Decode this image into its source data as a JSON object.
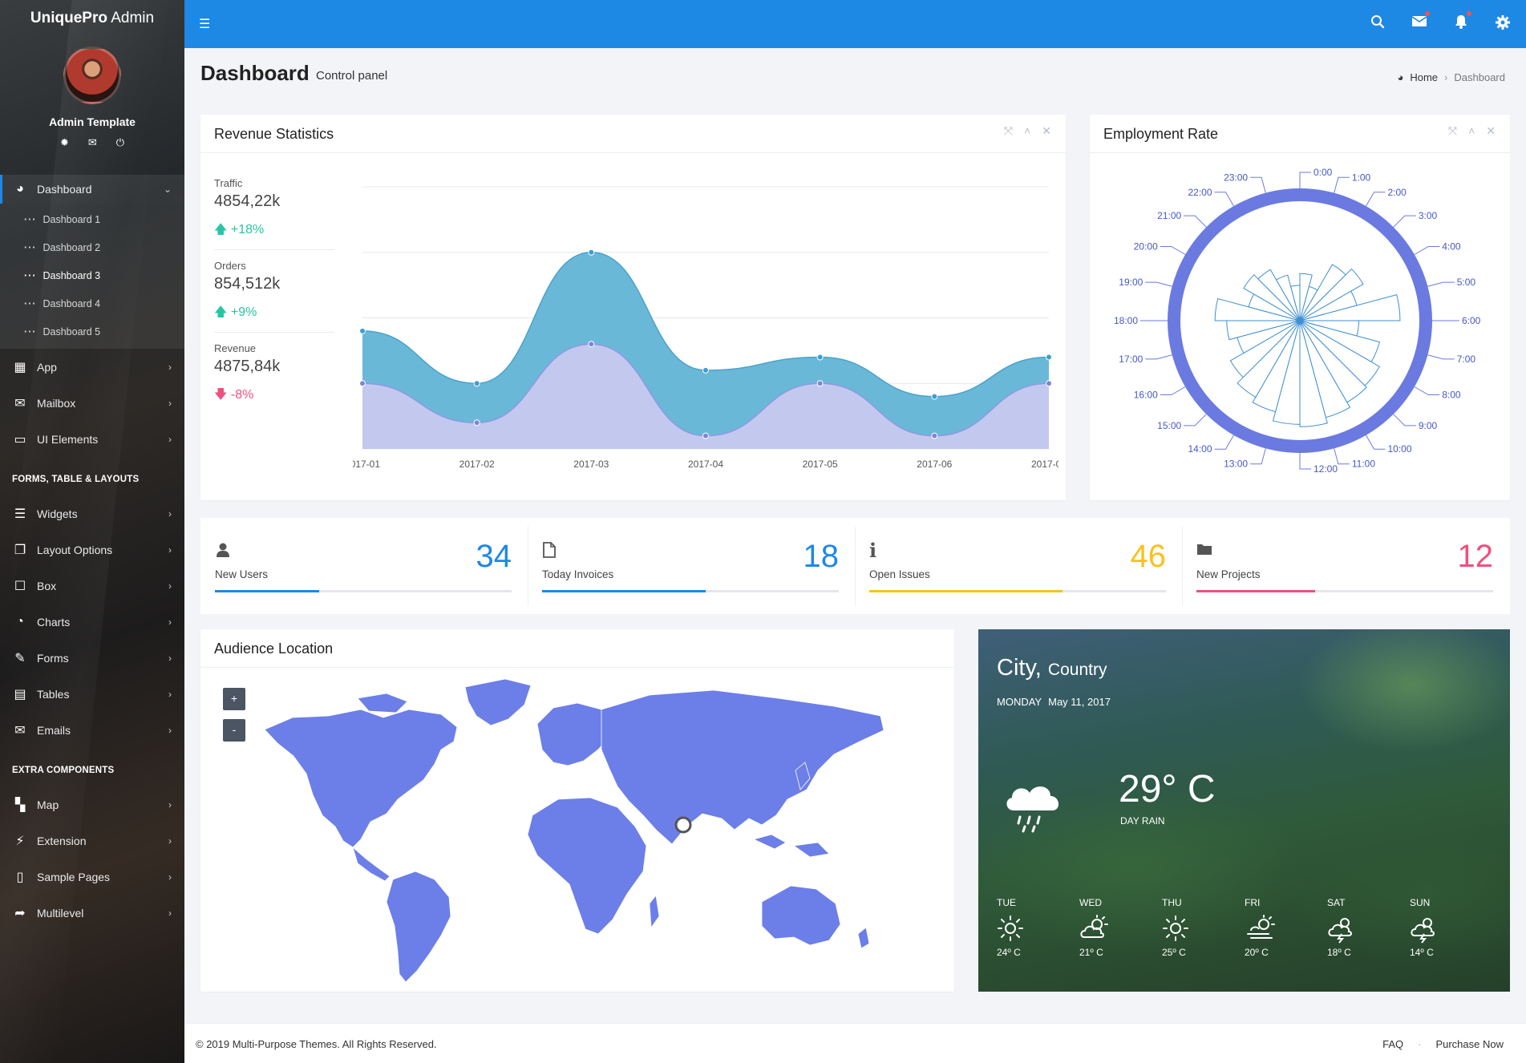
{
  "brand": {
    "bold": "UniquePro",
    "rest": " Admin"
  },
  "user": {
    "name": "Admin Template"
  },
  "sidebar": {
    "dashboard": {
      "label": "Dashboard",
      "subitems": [
        "Dashboard 1",
        "Dashboard 2",
        "Dashboard 3",
        "Dashboard 4",
        "Dashboard 5"
      ]
    },
    "items_a": [
      {
        "label": "App",
        "icon": "grid-icon"
      },
      {
        "label": "Mailbox",
        "icon": "envelope-icon"
      },
      {
        "label": "UI Elements",
        "icon": "laptop-icon"
      }
    ],
    "header_forms": "FORMS, TABLE & LAYOUTS",
    "items_b": [
      {
        "label": "Widgets",
        "icon": "bars-icon"
      },
      {
        "label": "Layout Options",
        "icon": "copy-icon"
      },
      {
        "label": "Box",
        "icon": "square-icon"
      },
      {
        "label": "Charts",
        "icon": "pie-chart-icon"
      },
      {
        "label": "Forms",
        "icon": "edit-icon"
      },
      {
        "label": "Tables",
        "icon": "table-icon"
      },
      {
        "label": "Emails",
        "icon": "envelope-open-icon"
      }
    ],
    "header_extra": "EXTRA COMPONENTS",
    "items_c": [
      {
        "label": "Map",
        "icon": "map-icon"
      },
      {
        "label": "Extension",
        "icon": "plug-icon"
      },
      {
        "label": "Sample Pages",
        "icon": "file-icon"
      },
      {
        "label": "Multilevel",
        "icon": "share-icon"
      }
    ]
  },
  "page": {
    "title": "Dashboard",
    "subtitle": "Control panel"
  },
  "breadcrumb": {
    "home": "Home",
    "current": "Dashboard"
  },
  "revenue": {
    "title": "Revenue Statistics",
    "stats": [
      {
        "label": "Traffic",
        "value": "4854,22k",
        "change": "+18%",
        "direction": "up"
      },
      {
        "label": "Orders",
        "value": "854,512k",
        "change": "+9%",
        "direction": "up"
      },
      {
        "label": "Revenue",
        "value": "4875,84k",
        "change": "-8%",
        "direction": "down"
      }
    ]
  },
  "chart_data": {
    "type": "area",
    "x": [
      "2017-01",
      "2017-02",
      "2017-03",
      "2017-04",
      "2017-05",
      "2017-06",
      "2017-07"
    ],
    "series": [
      {
        "values": [
          9,
          5,
          15,
          6,
          7,
          4,
          7
        ],
        "color": "#6ab8d8"
      },
      {
        "values": [
          5,
          2,
          8,
          1,
          5,
          1,
          5
        ],
        "color": "#c3c8ef"
      }
    ],
    "ylim": [
      0,
      20
    ],
    "yticks": [
      0,
      5,
      10,
      15,
      20
    ],
    "grid": true
  },
  "employment": {
    "title": "Employment Rate",
    "hours": [
      "0:00",
      "1:00",
      "2:00",
      "3:00",
      "4:00",
      "5:00",
      "6:00",
      "7:00",
      "8:00",
      "9:00",
      "10:00",
      "11:00",
      "12:00",
      "13:00",
      "14:00",
      "15:00",
      "16:00",
      "17:00",
      "18:00",
      "19:00",
      "20:00",
      "21:00",
      "22:00",
      "23:00"
    ],
    "values": [
      0.4,
      0.3,
      0.55,
      0.62,
      0.5,
      0.85,
      0.5,
      0.7,
      0.78,
      0.8,
      0.85,
      0.9,
      0.88,
      0.8,
      0.75,
      0.68,
      0.55,
      0.62,
      0.72,
      0.45,
      0.55,
      0.5,
      0.4,
      0.3
    ],
    "color": "#6a7ae0"
  },
  "kpis": [
    {
      "label": "New Users",
      "value": "34",
      "icon": "user-icon",
      "color": "#1e88e5",
      "progress": 0.35
    },
    {
      "label": "Today Invoices",
      "value": "18",
      "icon": "file-icon",
      "color": "#1e88e5",
      "progress": 0.55
    },
    {
      "label": "Open Issues",
      "value": "46",
      "icon": "info-icon",
      "color": "#f9c21b",
      "progress": 0.65
    },
    {
      "label": "New Projects",
      "value": "12",
      "icon": "folder-icon",
      "color": "#ef4f7e",
      "progress": 0.4
    }
  ],
  "audience": {
    "title": "Audience Location",
    "zoom_in": "+",
    "zoom_out": "-",
    "map_color": "#6c7ee8"
  },
  "weather": {
    "city": "City,",
    "country": "Country",
    "day": "MONDAY",
    "date": "May 11, 2017",
    "temp": "29° C",
    "condition": "DAY RAIN",
    "forecast": [
      {
        "day": "TUE",
        "temp": "24º C",
        "icon": "sun-icon"
      },
      {
        "day": "WED",
        "temp": "21º C",
        "icon": "cloud-sun-icon"
      },
      {
        "day": "THU",
        "temp": "25º C",
        "icon": "sun-icon"
      },
      {
        "day": "FRI",
        "temp": "20º C",
        "icon": "haze-icon"
      },
      {
        "day": "SAT",
        "temp": "18º C",
        "icon": "storm-icon"
      },
      {
        "day": "SUN",
        "temp": "14º C",
        "icon": "storm-icon"
      }
    ]
  },
  "footer": {
    "copyright": "© 2019 Multi-Purpose Themes. All Rights Reserved.",
    "faq": "FAQ",
    "purchase": "Purchase Now"
  }
}
